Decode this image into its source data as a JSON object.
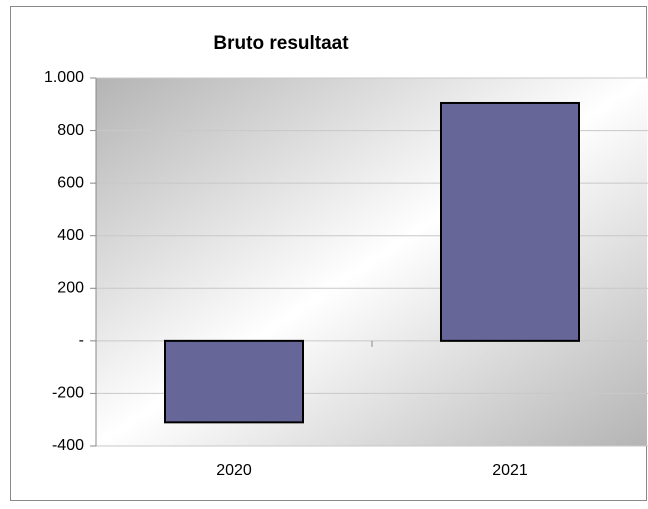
{
  "chart_data": {
    "type": "bar",
    "title": "Bruto resultaat",
    "categories": [
      "2020",
      "2021"
    ],
    "values": [
      -310,
      905
    ],
    "color": "#666699",
    "ylim": [
      -400,
      1000
    ],
    "yticks": [
      -400,
      -200,
      {
        "value": 0,
        "label": "-"
      },
      200,
      400,
      600,
      800,
      {
        "value": 1000,
        "label": "1.000"
      }
    ],
    "grid": true
  }
}
